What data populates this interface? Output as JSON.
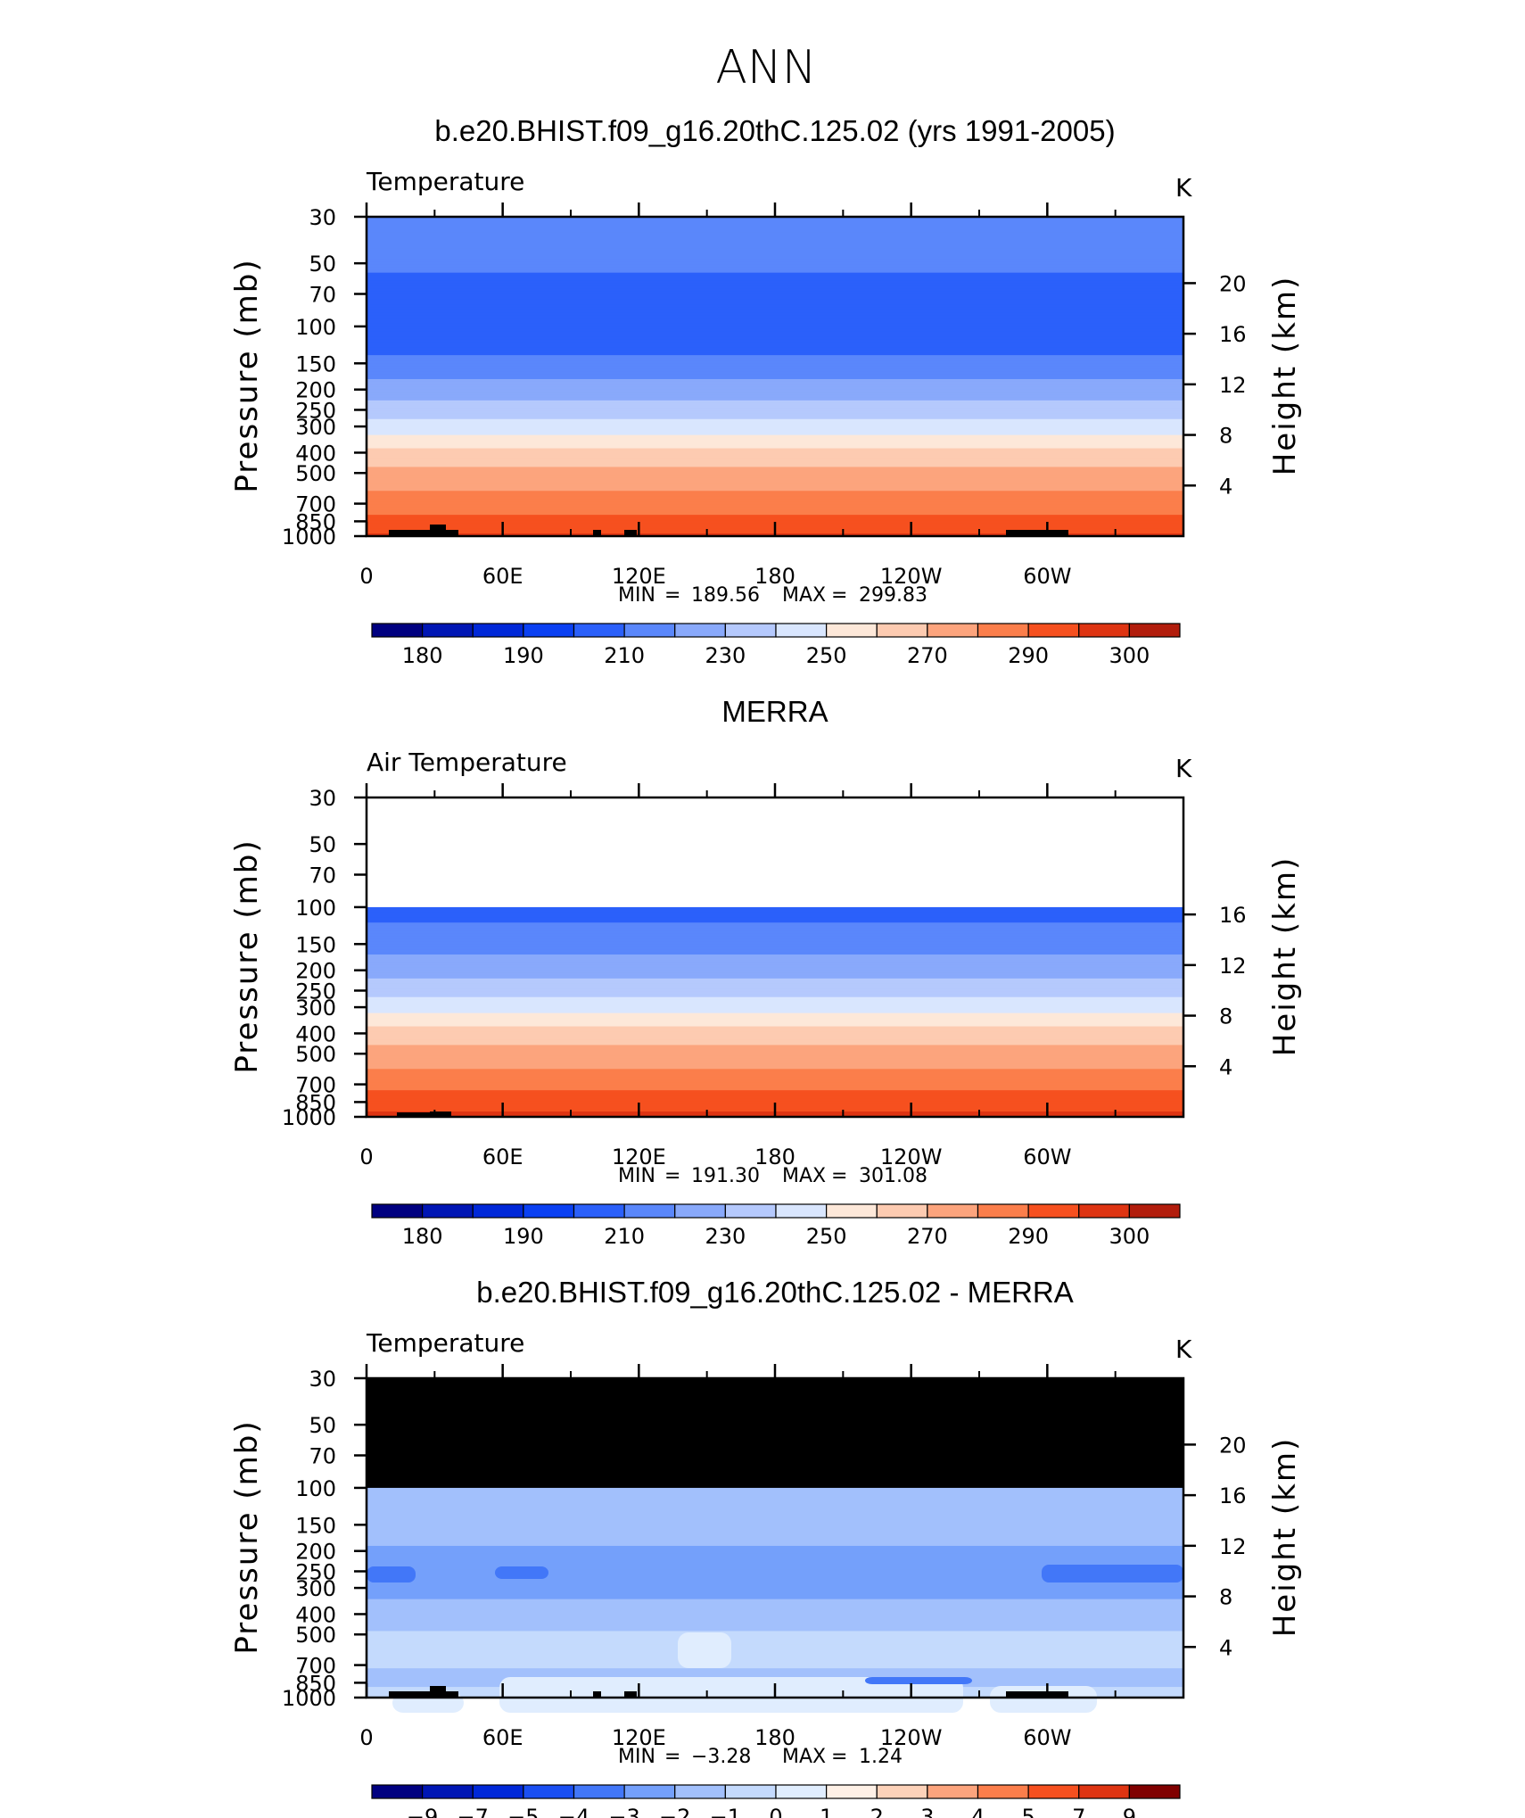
{
  "main_title": "ANN",
  "chart_data": [
    {
      "type": "heatmap",
      "title": "b.e20.BHIST.f09_g16.20thC.125.02 (yrs 1991-2005)",
      "left_label": "Temperature",
      "units": "K",
      "ylabel": "Pressure (mb)",
      "ylabel_right": "Height (km)",
      "x_ticks": [
        "0",
        "60E",
        "120E",
        "180",
        "120W",
        "60W"
      ],
      "y_ticks": [
        "30",
        "50",
        "70",
        "100",
        "150",
        "200",
        "250",
        "300",
        "400",
        "500",
        "700",
        "850",
        "1000"
      ],
      "right_ticks": [
        "20",
        "16",
        "12",
        "8",
        "4"
      ],
      "ylim_mb": [
        1000,
        30
      ],
      "stats": {
        "min_label": "MIN",
        "min": "189.56",
        "max_label": "MAX",
        "max": "299.83"
      },
      "colorbar": {
        "labels": [
          "180",
          "190",
          "210",
          "230",
          "250",
          "270",
          "290",
          "300"
        ]
      },
      "profile": [
        {
          "p": 30,
          "v": 208
        },
        {
          "p": 35,
          "v": 206
        },
        {
          "p": 45,
          "v": 203
        },
        {
          "p": 60,
          "v": 199
        },
        {
          "p": 80,
          "v": 197
        },
        {
          "p": 100,
          "v": 196
        },
        {
          "p": 130,
          "v": 198
        },
        {
          "p": 160,
          "v": 206
        },
        {
          "p": 200,
          "v": 214
        },
        {
          "p": 250,
          "v": 225
        },
        {
          "p": 300,
          "v": 233
        },
        {
          "p": 350,
          "v": 245
        },
        {
          "p": 420,
          "v": 256
        },
        {
          "p": 500,
          "v": 263
        },
        {
          "p": 600,
          "v": 270
        },
        {
          "p": 700,
          "v": 276
        },
        {
          "p": 850,
          "v": 283
        },
        {
          "p": 950,
          "v": 288
        },
        {
          "p": 1000,
          "v": 291
        }
      ]
    },
    {
      "type": "heatmap",
      "title": "MERRA",
      "left_label": "Air Temperature",
      "units": "K",
      "ylabel": "Pressure (mb)",
      "ylabel_right": "Height (km)",
      "x_ticks": [
        "0",
        "60E",
        "120E",
        "180",
        "120W",
        "60W"
      ],
      "y_ticks": [
        "30",
        "50",
        "70",
        "100",
        "150",
        "200",
        "250",
        "300",
        "400",
        "500",
        "700",
        "850",
        "1000"
      ],
      "right_ticks": [
        "16",
        "12",
        "8",
        "4"
      ],
      "ylim_mb": [
        1000,
        30
      ],
      "data_top_mb": 100,
      "stats": {
        "min_label": "MIN",
        "min": "191.30",
        "max_label": "MAX",
        "max": "301.08"
      },
      "colorbar": {
        "labels": [
          "180",
          "190",
          "210",
          "230",
          "250",
          "270",
          "290",
          "300"
        ]
      },
      "profile": [
        {
          "p": 100,
          "v": 198
        },
        {
          "p": 130,
          "v": 201
        },
        {
          "p": 160,
          "v": 208
        },
        {
          "p": 200,
          "v": 216
        },
        {
          "p": 250,
          "v": 227
        },
        {
          "p": 300,
          "v": 235
        },
        {
          "p": 350,
          "v": 247
        },
        {
          "p": 420,
          "v": 257
        },
        {
          "p": 500,
          "v": 264
        },
        {
          "p": 600,
          "v": 271
        },
        {
          "p": 700,
          "v": 277
        },
        {
          "p": 850,
          "v": 285
        },
        {
          "p": 950,
          "v": 290
        },
        {
          "p": 1000,
          "v": 293
        }
      ]
    },
    {
      "type": "heatmap",
      "title": "b.e20.BHIST.f09_g16.20thC.125.02 - MERRA",
      "left_label": "Temperature",
      "units": "K",
      "ylabel": "Pressure (mb)",
      "ylabel_right": "Height (km)",
      "x_ticks": [
        "0",
        "60E",
        "120E",
        "180",
        "120W",
        "60W"
      ],
      "y_ticks": [
        "30",
        "50",
        "70",
        "100",
        "150",
        "200",
        "250",
        "300",
        "400",
        "500",
        "700",
        "850",
        "1000"
      ],
      "right_ticks": [
        "20",
        "16",
        "12",
        "8",
        "4"
      ],
      "ylim_mb": [
        1000,
        30
      ],
      "missing_above_mb": 100,
      "stats": {
        "min_label": "MIN",
        "min": "−3.28",
        "max_label": "MAX",
        "max": "1.24"
      },
      "colorbar": {
        "labels": [
          "−9",
          "−7",
          "−5",
          "−4",
          "−3",
          "−2",
          "−1",
          "0",
          "1",
          "2",
          "3",
          "4",
          "5",
          "7",
          "9"
        ]
      },
      "profile": [
        {
          "p": 100,
          "v": -1.5
        },
        {
          "p": 130,
          "v": -1.6
        },
        {
          "p": 170,
          "v": -1.5
        },
        {
          "p": 200,
          "v": -2.2
        },
        {
          "p": 260,
          "v": -2.5
        },
        {
          "p": 320,
          "v": -2.2
        },
        {
          "p": 380,
          "v": -1.5
        },
        {
          "p": 450,
          "v": -1.2
        },
        {
          "p": 550,
          "v": -0.6
        },
        {
          "p": 700,
          "v": -0.8
        },
        {
          "p": 800,
          "v": -1.4
        },
        {
          "p": 900,
          "v": -1.0
        },
        {
          "p": 1000,
          "v": -0.5
        }
      ]
    }
  ],
  "colors": {
    "temperature_scale": [
      "#000080",
      "#0016b4",
      "#0028d8",
      "#0a40f2",
      "#2b60fa",
      "#5a87fb",
      "#89a9fb",
      "#b5c9fd",
      "#d9e6fe",
      "#fde8d9",
      "#fdcbb1",
      "#fca47d",
      "#fb7e4b",
      "#f6501f",
      "#de3412",
      "#b21d0c",
      "#800000"
    ],
    "difference_scale": [
      "#000080",
      "#0016b4",
      "#0028d8",
      "#1a4ff2",
      "#4277f8",
      "#74a0fb",
      "#a2c0fc",
      "#c4dafd",
      "#e0edfe",
      "#fef0e6",
      "#fdd2b9",
      "#fca47d",
      "#fb7e4b",
      "#f6501f",
      "#de3412",
      "#800000"
    ],
    "topography": "#000000",
    "missing": "#000000"
  }
}
